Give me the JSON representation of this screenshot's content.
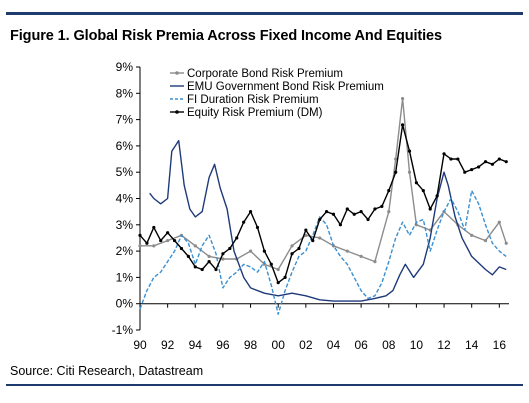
{
  "figure_title": "Figure 1. Global Risk Premia Across Fixed Income And Equities",
  "source": "Source: Citi Research, Datastream",
  "chart_data": {
    "type": "line",
    "title": "Figure 1. Global Risk Premia Across Fixed Income And Equities",
    "xlabel": "",
    "ylabel": "",
    "xlim": [
      1990,
      2016.7
    ],
    "ylim": [
      -1,
      9
    ],
    "x_ticks": [
      "90",
      "92",
      "94",
      "96",
      "98",
      "00",
      "02",
      "04",
      "06",
      "08",
      "10",
      "12",
      "14",
      "16"
    ],
    "x_tick_values": [
      1990,
      1992,
      1994,
      1996,
      1998,
      2000,
      2002,
      2004,
      2006,
      2008,
      2010,
      2012,
      2014,
      2016
    ],
    "y_ticks": [
      "-1%",
      "0%",
      "1%",
      "2%",
      "3%",
      "4%",
      "5%",
      "6%",
      "7%",
      "8%",
      "9%"
    ],
    "y_tick_values": [
      -1,
      0,
      1,
      2,
      3,
      4,
      5,
      6,
      7,
      8,
      9
    ],
    "grid": false,
    "legend_position": "top-center",
    "series": [
      {
        "name": "Corporate Bond Risk Premium",
        "color": "#8c8c8c",
        "style": "solid-marker",
        "x": [
          1990,
          1991,
          1992,
          1993,
          1994,
          1995,
          1996,
          1997,
          1998,
          1999,
          2000,
          2001,
          2002,
          2003,
          2004,
          2005,
          2006,
          2007,
          2008,
          2008.5,
          2009,
          2009.5,
          2010,
          2011,
          2012,
          2013,
          2014,
          2015,
          2016,
          2016.5
        ],
        "y": [
          2.2,
          2.2,
          2.4,
          2.6,
          2.2,
          1.8,
          1.7,
          1.7,
          2.0,
          1.5,
          1.3,
          2.2,
          2.6,
          2.5,
          2.2,
          2.0,
          1.8,
          1.6,
          3.5,
          5.5,
          7.8,
          5.0,
          3.0,
          2.8,
          3.5,
          3.0,
          2.6,
          2.4,
          3.1,
          2.3
        ]
      },
      {
        "name": "EMU Government Bond Risk Premium",
        "color": "#1f3a7a",
        "style": "solid",
        "x": [
          1990.7,
          1991,
          1991.5,
          1992,
          1992.3,
          1992.8,
          1993.2,
          1993.6,
          1994,
          1994.5,
          1995,
          1995.4,
          1995.8,
          1996.3,
          1996.8,
          1997.5,
          1998,
          1999,
          2000,
          2001,
          2002,
          2003,
          2004,
          2005,
          2006,
          2007,
          2007.8,
          2008.3,
          2008.8,
          2009.2,
          2009.8,
          2010.5,
          2011,
          2011.5,
          2012,
          2012.3,
          2012.8,
          2013.3,
          2014,
          2015,
          2015.5,
          2016,
          2016.5
        ],
        "y": [
          4.2,
          4.0,
          3.8,
          4.0,
          5.8,
          6.2,
          4.5,
          3.6,
          3.3,
          3.5,
          4.8,
          5.3,
          4.4,
          3.6,
          2.0,
          1.0,
          0.6,
          0.4,
          0.3,
          0.4,
          0.3,
          0.15,
          0.1,
          0.1,
          0.1,
          0.2,
          0.3,
          0.5,
          1.1,
          1.5,
          1.0,
          1.5,
          2.5,
          4.0,
          5.0,
          4.5,
          3.3,
          2.5,
          1.8,
          1.3,
          1.1,
          1.4,
          1.3
        ]
      },
      {
        "name": "FI Duration Risk Premium",
        "color": "#3a8fd0",
        "style": "dashed",
        "x": [
          1990,
          1990.5,
          1991,
          1991.5,
          1992,
          1992.5,
          1993,
          1993.5,
          1994,
          1994.5,
          1995,
          1995.5,
          1996,
          1996.5,
          1997,
          1997.5,
          1998,
          1998.5,
          1999,
          1999.5,
          2000,
          2000.5,
          2001,
          2001.5,
          2002,
          2002.5,
          2003,
          2003.5,
          2004,
          2004.5,
          2005,
          2005.5,
          2006,
          2006.5,
          2007,
          2007.5,
          2008,
          2008.5,
          2009,
          2009.5,
          2010,
          2010.5,
          2011,
          2011.5,
          2012,
          2012.5,
          2013,
          2013.5,
          2014,
          2014.5,
          2015,
          2015.5,
          2016,
          2016.5
        ],
        "y": [
          -0.2,
          0.5,
          1.0,
          1.2,
          1.6,
          2.0,
          2.6,
          2.3,
          1.5,
          2.2,
          2.6,
          1.9,
          0.6,
          1.0,
          1.2,
          1.5,
          1.4,
          1.2,
          1.6,
          0.7,
          -0.4,
          0.5,
          1.2,
          1.8,
          2.0,
          2.6,
          3.3,
          3.0,
          2.2,
          1.8,
          1.5,
          1.0,
          0.5,
          0.2,
          0.3,
          0.8,
          1.6,
          2.5,
          3.1,
          2.6,
          3.1,
          3.2,
          2.0,
          2.8,
          3.5,
          4.0,
          3.5,
          2.8,
          4.3,
          3.8,
          3.0,
          2.3,
          2.0,
          1.8
        ]
      },
      {
        "name": "Equity Risk Premium (DM)",
        "color": "#000000",
        "style": "solid-marker",
        "x": [
          1990,
          1990.5,
          1991,
          1991.5,
          1992,
          1992.5,
          1993,
          1993.5,
          1994,
          1994.5,
          1995,
          1995.5,
          1996,
          1996.5,
          1997,
          1997.5,
          1998,
          1998.5,
          1999,
          1999.5,
          2000,
          2000.5,
          2001,
          2001.5,
          2002,
          2002.5,
          2003,
          2003.5,
          2004,
          2004.5,
          2005,
          2005.5,
          2006,
          2006.5,
          2007,
          2007.5,
          2008,
          2008.5,
          2009,
          2009.5,
          2010,
          2010.5,
          2011,
          2011.5,
          2012,
          2012.5,
          2013,
          2013.5,
          2014,
          2014.5,
          2015,
          2015.5,
          2016,
          2016.5
        ],
        "y": [
          2.6,
          2.3,
          2.9,
          2.4,
          2.7,
          2.4,
          2.1,
          1.8,
          1.4,
          1.3,
          1.6,
          1.3,
          1.9,
          2.1,
          2.5,
          3.1,
          3.5,
          2.9,
          2.0,
          1.5,
          0.8,
          1.0,
          1.9,
          2.1,
          2.8,
          2.4,
          3.2,
          3.5,
          3.4,
          3.0,
          3.6,
          3.4,
          3.5,
          3.2,
          3.6,
          3.7,
          4.3,
          5.0,
          6.8,
          5.8,
          4.6,
          4.3,
          3.6,
          4.1,
          5.7,
          5.5,
          5.5,
          5.0,
          5.1,
          5.2,
          5.4,
          5.3,
          5.5,
          5.4
        ]
      }
    ]
  }
}
